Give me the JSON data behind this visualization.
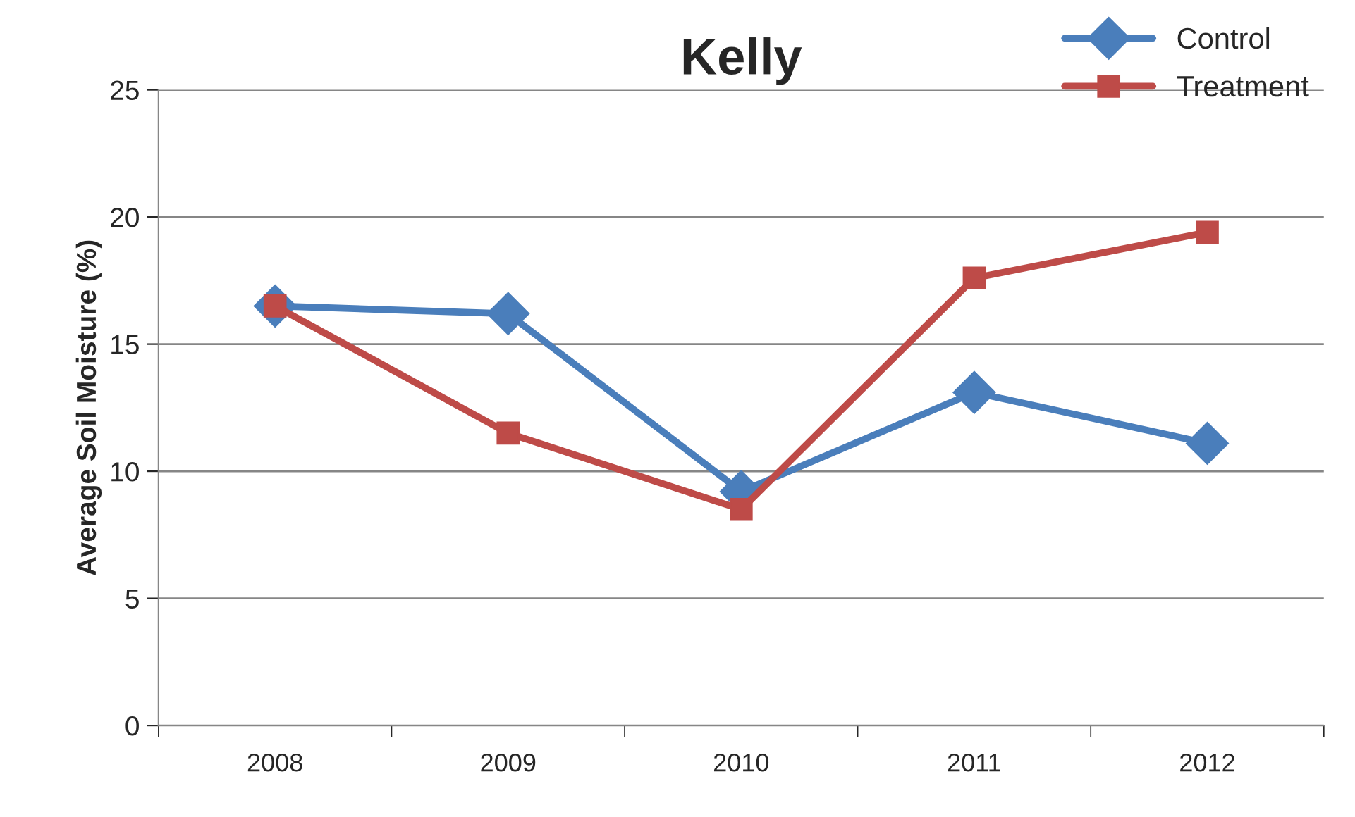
{
  "chart_data": {
    "type": "line",
    "title": "Kelly",
    "ylabel": "Average Soil Moisture (%)",
    "categories": [
      "2008",
      "2009",
      "2010",
      "2011",
      "2012"
    ],
    "series": [
      {
        "name": "Control",
        "color": "#4a7ebb",
        "marker": "diamond",
        "values": [
          16.5,
          16.2,
          9.2,
          13.1,
          11.1
        ]
      },
      {
        "name": "Treatment",
        "color": "#be4b48",
        "marker": "square",
        "values": [
          16.5,
          11.5,
          8.5,
          17.6,
          19.4
        ]
      }
    ],
    "ylim": [
      0,
      25
    ],
    "yticks": [
      0,
      5,
      10,
      15,
      20,
      25
    ],
    "grid": "y",
    "legend": "top right",
    "line_style": "solid"
  }
}
